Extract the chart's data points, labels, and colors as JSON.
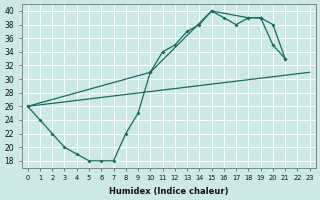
{
  "bg_color": "#cce8e8",
  "line_color": "#1a6b5a",
  "grid_color": "#b0d8d8",
  "xlabel": "Humidex (Indice chaleur)",
  "xlim": [
    -0.5,
    23.5
  ],
  "ylim": [
    17,
    41
  ],
  "yticks": [
    18,
    20,
    22,
    24,
    26,
    28,
    30,
    32,
    34,
    36,
    38,
    40
  ],
  "xticks": [
    0,
    1,
    2,
    3,
    4,
    5,
    6,
    7,
    8,
    9,
    10,
    11,
    12,
    13,
    14,
    15,
    16,
    17,
    18,
    19,
    20,
    21,
    22,
    23
  ],
  "line1_x": [
    0,
    1,
    2,
    3,
    4,
    5,
    6,
    7,
    8,
    9,
    10,
    11,
    12,
    13,
    14,
    15,
    16,
    17,
    18,
    19,
    20,
    21
  ],
  "line1_y": [
    26,
    24,
    22,
    20,
    19,
    18,
    18,
    18,
    22,
    25,
    31,
    34,
    35,
    37,
    38,
    40,
    39,
    38,
    39,
    39,
    35,
    33
  ],
  "line2_x": [
    0,
    10,
    15,
    18,
    19,
    20,
    21
  ],
  "line2_y": [
    26,
    31,
    40,
    39,
    39,
    38,
    33
  ],
  "line3_x": [
    0,
    23
  ],
  "line3_y": [
    26,
    31
  ]
}
